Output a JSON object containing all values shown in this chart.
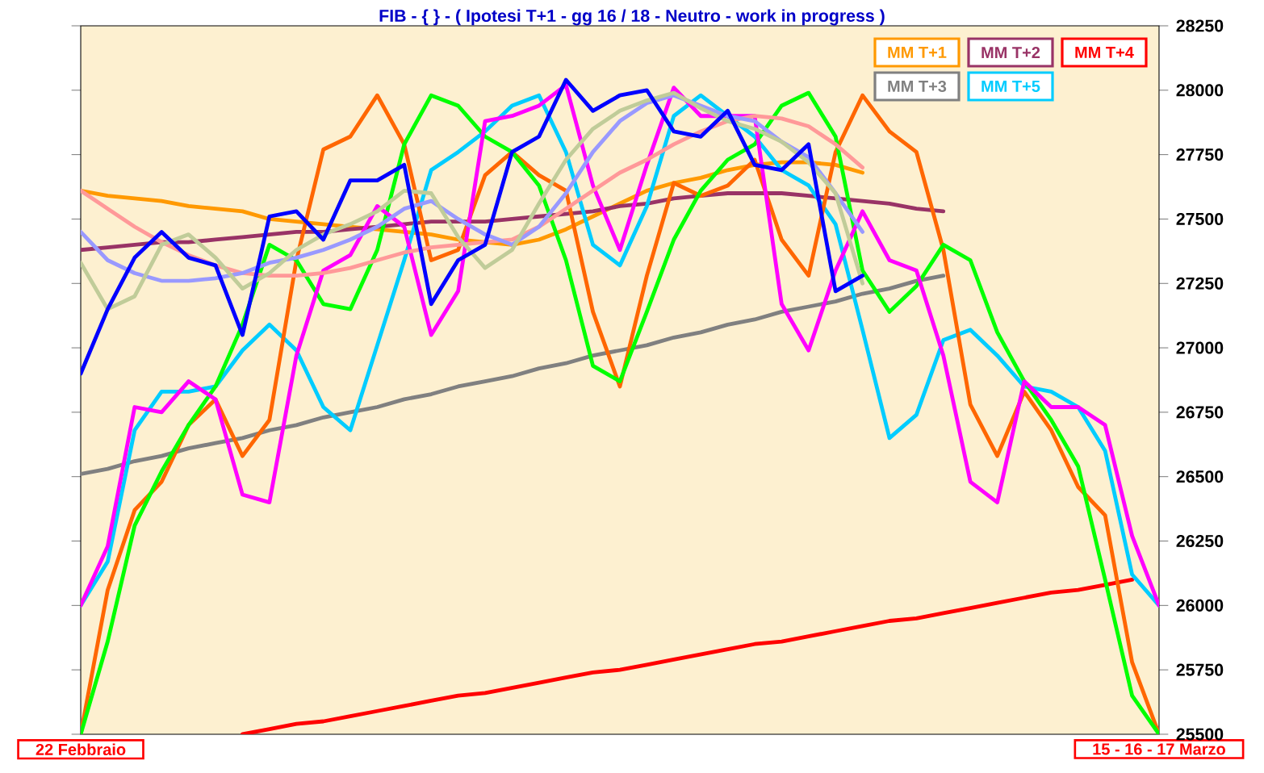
{
  "chart_data": {
    "type": "line",
    "title": "FIB - { } - ( Ipotesi T+1 - gg 16 / 18 - Neutro - work in progress )",
    "categories": [
      "22 Febbraio",
      null,
      null,
      null,
      null,
      null,
      null,
      null,
      null,
      null,
      null,
      null,
      null,
      null,
      null,
      null,
      null,
      null,
      null,
      null,
      null,
      null,
      null,
      null,
      null,
      null,
      null,
      null,
      null,
      null,
      null,
      null,
      null,
      null,
      null,
      null,
      null,
      null,
      null,
      null,
      "15 - 16 - 17 Marzo"
    ],
    "ylim": [
      25500,
      28250
    ],
    "yticks": [
      25500,
      25750,
      26000,
      26250,
      26500,
      26750,
      27000,
      27250,
      27500,
      27750,
      28000,
      28250
    ],
    "legend": "top right",
    "grid": false,
    "series": [
      {
        "name": "MM  T+1",
        "color": "#ff9900",
        "values": [
          27610,
          27590,
          27580,
          27570,
          27550,
          27540,
          27530,
          27500,
          27490,
          27480,
          27470,
          27460,
          27450,
          27440,
          27420,
          27410,
          27400,
          27420,
          27460,
          27510,
          27560,
          27610,
          27640,
          27660,
          27690,
          27710,
          27720,
          27720,
          27710,
          27680,
          null,
          null,
          null,
          null,
          null,
          null,
          null,
          null,
          null,
          null,
          null
        ]
      },
      {
        "name": "MM  T+2",
        "color": "#993366",
        "values": [
          27380,
          27390,
          27400,
          27410,
          27410,
          27420,
          27430,
          27440,
          27450,
          27450,
          27460,
          27470,
          27480,
          27490,
          27490,
          27490,
          27500,
          27510,
          27520,
          27530,
          27550,
          27560,
          27580,
          27590,
          27600,
          27600,
          27600,
          27590,
          27580,
          27570,
          27560,
          27540,
          27530,
          null,
          null,
          null,
          null,
          null,
          null,
          null,
          null
        ]
      },
      {
        "name": "MM  T+4",
        "color": "#ff0000",
        "values": [
          null,
          null,
          null,
          null,
          null,
          null,
          25500,
          25520,
          25540,
          25550,
          25570,
          25590,
          25610,
          25630,
          25650,
          25660,
          25680,
          25700,
          25720,
          25740,
          25750,
          25770,
          25790,
          25810,
          25830,
          25850,
          25860,
          25880,
          25900,
          25920,
          25940,
          25950,
          25970,
          25990,
          26010,
          26030,
          26050,
          26060,
          26080,
          26100,
          null
        ]
      },
      {
        "name": "MM  T+3",
        "color": "#808080",
        "values": [
          26510,
          26530,
          26560,
          26580,
          26610,
          26630,
          26650,
          26680,
          26700,
          26730,
          26750,
          26770,
          26800,
          26820,
          26850,
          26870,
          26890,
          26920,
          26940,
          26970,
          26990,
          27010,
          27040,
          27060,
          27090,
          27110,
          27140,
          27160,
          27180,
          27210,
          27230,
          27260,
          27280,
          null,
          null,
          null,
          null,
          null,
          null,
          null,
          null
        ]
      },
      {
        "name": "MM  T+5",
        "color": "#00ccff",
        "values": [
          26000,
          26170,
          26680,
          26830,
          26830,
          26850,
          26990,
          27090,
          26990,
          26770,
          26680,
          27010,
          27340,
          27690,
          27760,
          27840,
          27940,
          27980,
          27760,
          27400,
          27320,
          27550,
          27900,
          27980,
          27900,
          27820,
          27690,
          27630,
          27480,
          27070,
          26650,
          26740,
          27030,
          27070,
          26970,
          26850,
          26830,
          26770,
          26600,
          26120,
          26000
        ]
      },
      {
        "color": "#ff6600",
        "values": [
          25500,
          26060,
          26370,
          26480,
          26700,
          26800,
          26580,
          26720,
          27340,
          27770,
          27820,
          27980,
          27790,
          27340,
          27380,
          27670,
          27760,
          27670,
          27610,
          27140,
          26850,
          27280,
          27640,
          27590,
          27630,
          27730,
          27420,
          27280,
          27760,
          27980,
          27840,
          27760,
          27380,
          26780,
          26580,
          26830,
          26680,
          26460,
          26350,
          25780,
          25500
        ]
      },
      {
        "color": "#00ff00",
        "values": [
          25500,
          25860,
          26310,
          26520,
          26700,
          26850,
          27090,
          27400,
          27340,
          27170,
          27150,
          27380,
          27790,
          27980,
          27940,
          27820,
          27760,
          27630,
          27340,
          26930,
          26870,
          27140,
          27420,
          27610,
          27730,
          27790,
          27940,
          27990,
          27820,
          27300,
          27140,
          27240,
          27400,
          27340,
          27060,
          26870,
          26720,
          26540,
          26100,
          25650,
          25500
        ]
      },
      {
        "color": "#ff00ff",
        "values": [
          26000,
          26230,
          26770,
          26750,
          26870,
          26800,
          26430,
          26400,
          26970,
          27300,
          27360,
          27550,
          27470,
          27050,
          27220,
          27880,
          27900,
          27940,
          28020,
          27630,
          27380,
          27710,
          28010,
          27900,
          27900,
          27900,
          27170,
          26990,
          27300,
          27530,
          27340,
          27300,
          26970,
          26480,
          26400,
          26870,
          26770,
          26770,
          26700,
          26270,
          26000
        ]
      },
      {
        "color": "#ff9999",
        "values": [
          27610,
          27540,
          27470,
          27410,
          27360,
          27320,
          27290,
          27280,
          27280,
          27290,
          27310,
          27340,
          27370,
          27390,
          27400,
          27410,
          27420,
          27470,
          27540,
          27610,
          27680,
          27730,
          27790,
          27840,
          27880,
          27900,
          27890,
          27860,
          27790,
          27700,
          null,
          null,
          null,
          null,
          null,
          null,
          null,
          null,
          null,
          null,
          null
        ]
      },
      {
        "color": "#9999ff",
        "values": [
          27450,
          27340,
          27290,
          27260,
          27260,
          27270,
          27290,
          27330,
          27350,
          27380,
          27420,
          27470,
          27540,
          27570,
          27500,
          27440,
          27400,
          27470,
          27600,
          27760,
          27880,
          27950,
          27980,
          27940,
          27900,
          27880,
          27800,
          27740,
          27600,
          27450,
          null,
          null,
          null,
          null,
          null,
          null,
          null,
          null,
          null,
          null,
          null
        ]
      },
      {
        "color": "#c0cc99",
        "values": [
          27330,
          27150,
          27200,
          27400,
          27440,
          27350,
          27230,
          27290,
          27380,
          27440,
          27480,
          27530,
          27610,
          27600,
          27430,
          27310,
          27380,
          27560,
          27730,
          27850,
          27920,
          27960,
          27990,
          27930,
          27880,
          27850,
          27800,
          27720,
          27600,
          27250,
          null,
          null,
          null,
          null,
          null,
          null,
          null,
          null,
          null,
          null,
          null
        ]
      },
      {
        "color": "#0000ff",
        "values": [
          26900,
          27150,
          27350,
          27450,
          27350,
          27320,
          27050,
          27510,
          27530,
          27420,
          27650,
          27650,
          27710,
          27170,
          27340,
          27400,
          27760,
          27820,
          28040,
          27920,
          27980,
          28000,
          27840,
          27820,
          27920,
          27710,
          27690,
          27790,
          27220,
          27280,
          null,
          null,
          null,
          null,
          null,
          null,
          null,
          null,
          null,
          null,
          null
        ]
      }
    ]
  }
}
